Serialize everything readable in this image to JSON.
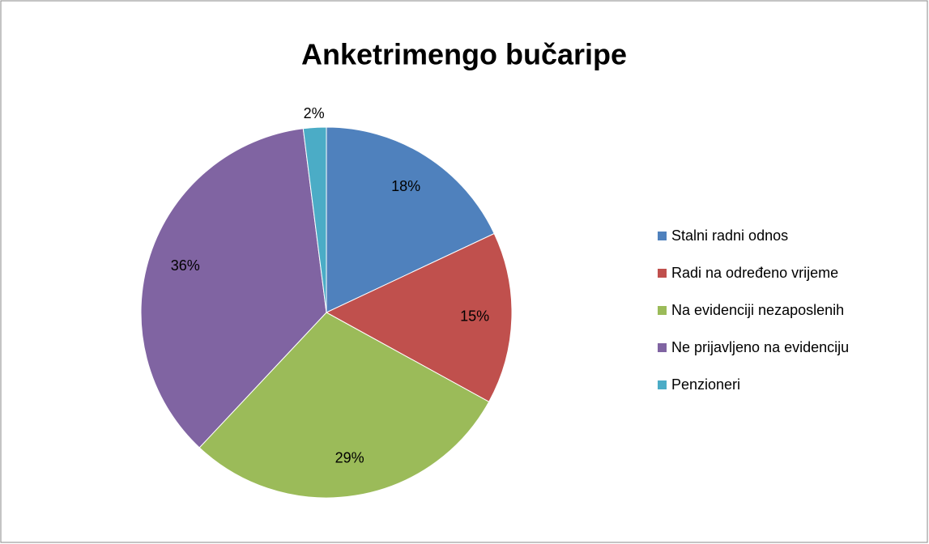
{
  "chart_data": {
    "type": "pie",
    "title": "Anketrimengo bučaripe",
    "categories": [
      "Stalni radni odnos",
      "Radi na određeno vrijeme",
      "Na evidenciji nezaposlenih",
      "Ne prijavljeno na evidenciju",
      "Penzioneri"
    ],
    "values": [
      18,
      15,
      29,
      36,
      2
    ],
    "value_labels": [
      "18%",
      "15%",
      "29%",
      "36%",
      "2%"
    ],
    "colors": [
      "#4f81bd",
      "#c0504d",
      "#9bbb59",
      "#8064a2",
      "#4bacc6"
    ],
    "legend": "right"
  }
}
